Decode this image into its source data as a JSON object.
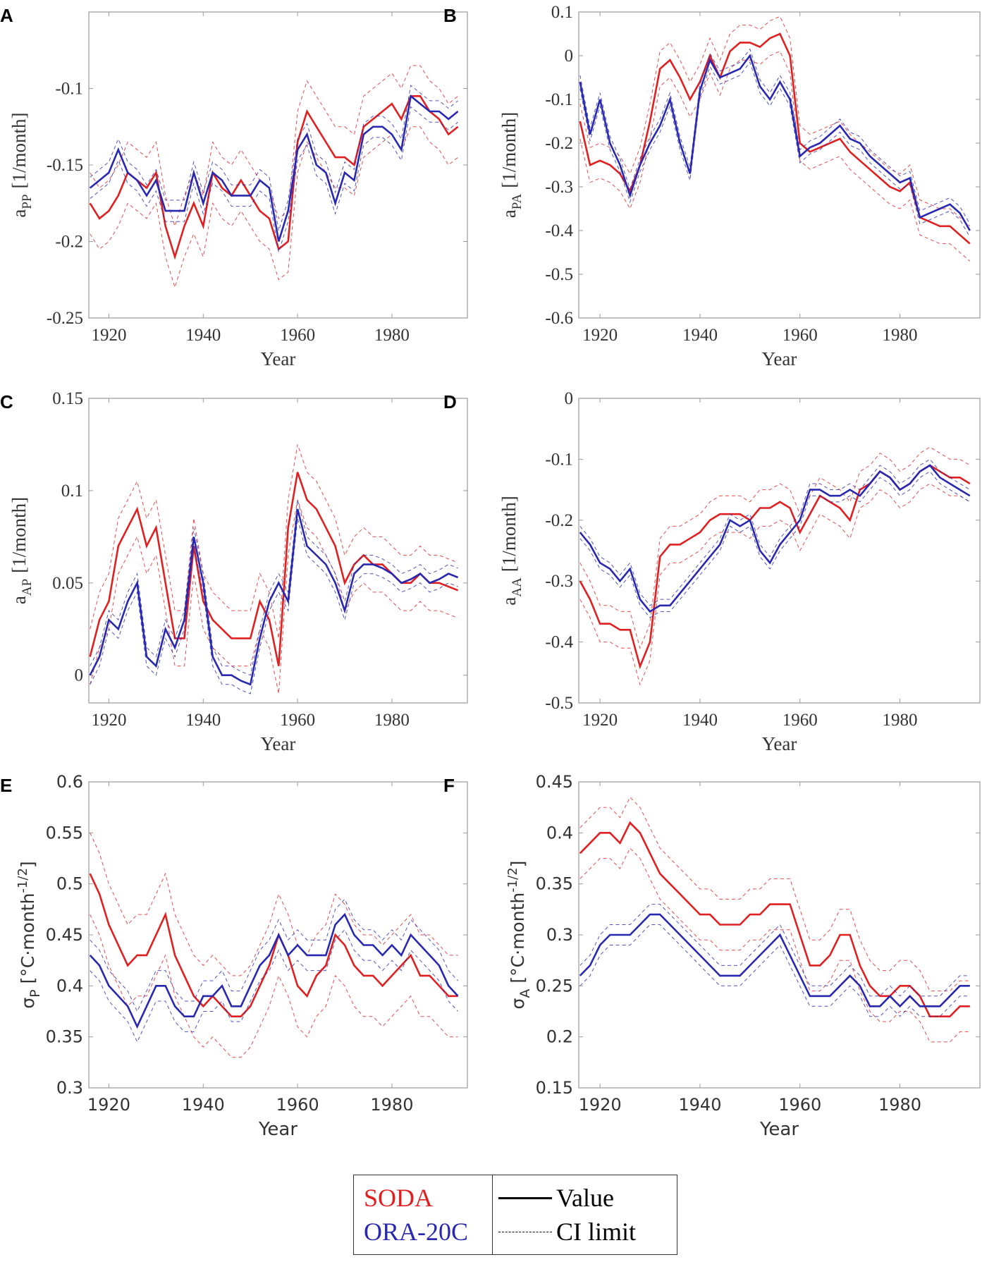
{
  "colors": {
    "soda": "#e02020",
    "ora": "#2828b0"
  },
  "legend": {
    "series": [
      {
        "label": "SODA",
        "color": "#e02020"
      },
      {
        "label": "ORA-20C",
        "color": "#2828b0"
      }
    ],
    "styles": [
      {
        "label": "Value",
        "style": "solid"
      },
      {
        "label": "CI limit",
        "style": "dashed"
      }
    ]
  },
  "years": [
    1916,
    1918,
    1920,
    1922,
    1924,
    1926,
    1928,
    1930,
    1932,
    1934,
    1936,
    1938,
    1940,
    1942,
    1944,
    1946,
    1948,
    1950,
    1952,
    1954,
    1956,
    1958,
    1960,
    1962,
    1964,
    1966,
    1968,
    1970,
    1972,
    1974,
    1976,
    1978,
    1980,
    1982,
    1984,
    1986,
    1988,
    1990,
    1992,
    1994
  ],
  "chart_data": [
    {
      "panel": "A",
      "type": "line",
      "xlabel": "Year",
      "ylabel_main": "a",
      "ylabel_sub": "PP",
      "ylabel_unit": "[1/month]",
      "xlim": [
        1915.75,
        1996
      ],
      "ylim": [
        -0.25,
        -0.05
      ],
      "xticks": [
        "1920",
        "1940",
        "1960",
        "1980"
      ],
      "yticks": [
        "-0.25",
        "-0.2",
        "-0.15",
        "-0.1"
      ],
      "series": [
        {
          "name": "SODA",
          "ci": 0.02,
          "values": [
            -0.175,
            -0.185,
            -0.18,
            -0.17,
            -0.155,
            -0.16,
            -0.165,
            -0.155,
            -0.19,
            -0.21,
            -0.19,
            -0.175,
            -0.19,
            -0.155,
            -0.165,
            -0.17,
            -0.16,
            -0.17,
            -0.18,
            -0.185,
            -0.205,
            -0.2,
            -0.135,
            -0.115,
            -0.125,
            -0.135,
            -0.145,
            -0.145,
            -0.15,
            -0.125,
            -0.12,
            -0.115,
            -0.11,
            -0.12,
            -0.105,
            -0.105,
            -0.115,
            -0.12,
            -0.13,
            -0.125
          ]
        },
        {
          "name": "ORA-20C",
          "ci": 0.007,
          "values": [
            -0.165,
            -0.16,
            -0.155,
            -0.14,
            -0.155,
            -0.16,
            -0.17,
            -0.16,
            -0.18,
            -0.18,
            -0.18,
            -0.155,
            -0.175,
            -0.155,
            -0.16,
            -0.17,
            -0.17,
            -0.17,
            -0.16,
            -0.165,
            -0.2,
            -0.18,
            -0.14,
            -0.13,
            -0.15,
            -0.155,
            -0.175,
            -0.155,
            -0.16,
            -0.13,
            -0.125,
            -0.125,
            -0.13,
            -0.14,
            -0.105,
            -0.11,
            -0.115,
            -0.115,
            -0.12,
            -0.115
          ]
        }
      ]
    },
    {
      "panel": "B",
      "type": "line",
      "xlabel": "Year",
      "ylabel_main": "a",
      "ylabel_sub": "PA",
      "ylabel_unit": "[1/month]",
      "xlim": [
        1915.75,
        1996
      ],
      "ylim": [
        -0.6,
        0.1
      ],
      "xticks": [
        "1920",
        "1940",
        "1960",
        "1980"
      ],
      "yticks": [
        "-0.6",
        "-0.5",
        "-0.4",
        "-0.3",
        "-0.2",
        "-0.1",
        "0",
        "0.1"
      ],
      "series": [
        {
          "name": "SODA",
          "ci": 0.04,
          "values": [
            -0.15,
            -0.25,
            -0.24,
            -0.25,
            -0.27,
            -0.31,
            -0.25,
            -0.15,
            -0.03,
            -0.01,
            -0.05,
            -0.1,
            -0.06,
            0.0,
            -0.05,
            0.01,
            0.03,
            0.03,
            0.02,
            0.04,
            0.05,
            0.0,
            -0.2,
            -0.22,
            -0.21,
            -0.2,
            -0.19,
            -0.22,
            -0.24,
            -0.26,
            -0.28,
            -0.3,
            -0.31,
            -0.29,
            -0.37,
            -0.38,
            -0.39,
            -0.39,
            -0.41,
            -0.43
          ]
        },
        {
          "name": "ORA-20C",
          "ci": 0.015,
          "values": [
            -0.06,
            -0.18,
            -0.1,
            -0.2,
            -0.25,
            -0.32,
            -0.25,
            -0.2,
            -0.16,
            -0.1,
            -0.2,
            -0.27,
            -0.08,
            -0.01,
            -0.05,
            -0.04,
            -0.03,
            0.0,
            -0.07,
            -0.1,
            -0.06,
            -0.1,
            -0.23,
            -0.21,
            -0.2,
            -0.18,
            -0.16,
            -0.19,
            -0.2,
            -0.23,
            -0.25,
            -0.27,
            -0.29,
            -0.28,
            -0.37,
            -0.36,
            -0.35,
            -0.34,
            -0.36,
            -0.4
          ]
        }
      ]
    },
    {
      "panel": "C",
      "type": "line",
      "xlabel": "Year",
      "ylabel_main": "a",
      "ylabel_sub": "AP",
      "ylabel_unit": "[1/month]",
      "xlim": [
        1915.75,
        1996
      ],
      "ylim": [
        -0.015,
        0.15
      ],
      "xticks": [
        "1920",
        "1940",
        "1960",
        "1980"
      ],
      "yticks": [
        "0",
        "0.05",
        "0.1",
        "0.15"
      ],
      "series": [
        {
          "name": "SODA",
          "ci": 0.015,
          "values": [
            0.01,
            0.03,
            0.04,
            0.07,
            0.08,
            0.09,
            0.07,
            0.08,
            0.05,
            0.02,
            0.02,
            0.07,
            0.04,
            0.03,
            0.025,
            0.02,
            0.02,
            0.02,
            0.04,
            0.03,
            0.005,
            0.08,
            0.11,
            0.095,
            0.09,
            0.08,
            0.07,
            0.05,
            0.06,
            0.065,
            0.06,
            0.06,
            0.055,
            0.05,
            0.05,
            0.055,
            0.05,
            0.05,
            0.048,
            0.046
          ]
        },
        {
          "name": "ORA-20C",
          "ci": 0.005,
          "values": [
            0.0,
            0.01,
            0.03,
            0.025,
            0.04,
            0.05,
            0.01,
            0.005,
            0.025,
            0.015,
            0.03,
            0.075,
            0.05,
            0.01,
            0.0,
            0.0,
            -0.003,
            -0.005,
            0.02,
            0.04,
            0.05,
            0.04,
            0.09,
            0.07,
            0.065,
            0.06,
            0.05,
            0.035,
            0.055,
            0.06,
            0.06,
            0.058,
            0.055,
            0.05,
            0.052,
            0.055,
            0.05,
            0.052,
            0.055,
            0.053
          ]
        }
      ]
    },
    {
      "panel": "D",
      "type": "line",
      "xlabel": "Year",
      "ylabel_main": "a",
      "ylabel_sub": "AA",
      "ylabel_unit": "[1/month]",
      "xlim": [
        1915.75,
        1996
      ],
      "ylim": [
        -0.5,
        0
      ],
      "xticks": [
        "1920",
        "1940",
        "1960",
        "1980"
      ],
      "yticks": [
        "-0.5",
        "-0.4",
        "-0.3",
        "-0.2",
        "-0.1",
        "0"
      ],
      "series": [
        {
          "name": "SODA",
          "ci": 0.03,
          "values": [
            -0.3,
            -0.33,
            -0.37,
            -0.37,
            -0.38,
            -0.38,
            -0.44,
            -0.4,
            -0.26,
            -0.24,
            -0.24,
            -0.23,
            -0.22,
            -0.2,
            -0.19,
            -0.19,
            -0.19,
            -0.2,
            -0.18,
            -0.18,
            -0.17,
            -0.18,
            -0.22,
            -0.19,
            -0.16,
            -0.17,
            -0.18,
            -0.2,
            -0.15,
            -0.14,
            -0.12,
            -0.13,
            -0.15,
            -0.14,
            -0.12,
            -0.11,
            -0.12,
            -0.13,
            -0.13,
            -0.14
          ]
        },
        {
          "name": "ORA-20C",
          "ci": 0.01,
          "values": [
            -0.22,
            -0.24,
            -0.27,
            -0.28,
            -0.3,
            -0.28,
            -0.33,
            -0.35,
            -0.34,
            -0.34,
            -0.32,
            -0.3,
            -0.28,
            -0.26,
            -0.24,
            -0.2,
            -0.21,
            -0.2,
            -0.25,
            -0.27,
            -0.24,
            -0.22,
            -0.2,
            -0.15,
            -0.15,
            -0.16,
            -0.16,
            -0.15,
            -0.16,
            -0.14,
            -0.12,
            -0.13,
            -0.15,
            -0.14,
            -0.12,
            -0.11,
            -0.13,
            -0.14,
            -0.15,
            -0.16
          ]
        }
      ]
    },
    {
      "panel": "E",
      "type": "line",
      "xlabel": "Year",
      "ylabel_main": "σ",
      "ylabel_sub": "P",
      "ylabel_unit": "[°C·month",
      "ylabel_sup": "-1/2",
      "ylabel_close": "]",
      "xlim": [
        1915.75,
        1996
      ],
      "ylim": [
        0.3,
        0.6
      ],
      "xticks": [
        "1920",
        "1940",
        "1960",
        "1980"
      ],
      "yticks": [
        "0.3",
        "0.35",
        "0.4",
        "0.45",
        "0.5",
        "0.55",
        "0.6"
      ],
      "series": [
        {
          "name": "SODA",
          "ci": 0.04,
          "values": [
            0.51,
            0.49,
            0.46,
            0.44,
            0.42,
            0.43,
            0.43,
            0.45,
            0.47,
            0.43,
            0.41,
            0.39,
            0.38,
            0.39,
            0.38,
            0.37,
            0.37,
            0.38,
            0.4,
            0.42,
            0.45,
            0.43,
            0.4,
            0.39,
            0.41,
            0.42,
            0.45,
            0.44,
            0.42,
            0.41,
            0.41,
            0.4,
            0.41,
            0.42,
            0.43,
            0.41,
            0.41,
            0.4,
            0.39,
            0.39
          ]
        },
        {
          "name": "ORA-20C",
          "ci": 0.015,
          "values": [
            0.43,
            0.42,
            0.4,
            0.39,
            0.38,
            0.36,
            0.38,
            0.4,
            0.4,
            0.38,
            0.37,
            0.37,
            0.39,
            0.39,
            0.4,
            0.38,
            0.38,
            0.4,
            0.42,
            0.43,
            0.45,
            0.43,
            0.44,
            0.43,
            0.43,
            0.43,
            0.46,
            0.47,
            0.45,
            0.44,
            0.44,
            0.43,
            0.44,
            0.43,
            0.45,
            0.44,
            0.43,
            0.42,
            0.4,
            0.39
          ]
        }
      ]
    },
    {
      "panel": "F",
      "type": "line",
      "xlabel": "Year",
      "ylabel_main": "σ",
      "ylabel_sub": "A",
      "ylabel_unit": "[°C·month",
      "ylabel_sup": "-1/2",
      "ylabel_close": "]",
      "xlim": [
        1915.75,
        1996
      ],
      "ylim": [
        0.15,
        0.45
      ],
      "xticks": [
        "1920",
        "1940",
        "1960",
        "1980"
      ],
      "yticks": [
        "0.15",
        "0.2",
        "0.25",
        "0.3",
        "0.35",
        "0.4",
        "0.45"
      ],
      "series": [
        {
          "name": "SODA",
          "ci": 0.025,
          "values": [
            0.38,
            0.39,
            0.4,
            0.4,
            0.39,
            0.41,
            0.4,
            0.38,
            0.36,
            0.35,
            0.34,
            0.33,
            0.32,
            0.32,
            0.31,
            0.31,
            0.31,
            0.32,
            0.32,
            0.33,
            0.33,
            0.33,
            0.3,
            0.27,
            0.27,
            0.28,
            0.3,
            0.3,
            0.27,
            0.25,
            0.24,
            0.24,
            0.25,
            0.25,
            0.24,
            0.22,
            0.22,
            0.22,
            0.23,
            0.23
          ]
        },
        {
          "name": "ORA-20C",
          "ci": 0.01,
          "values": [
            0.26,
            0.27,
            0.29,
            0.3,
            0.3,
            0.3,
            0.31,
            0.32,
            0.32,
            0.31,
            0.3,
            0.29,
            0.28,
            0.27,
            0.26,
            0.26,
            0.26,
            0.27,
            0.28,
            0.29,
            0.3,
            0.28,
            0.26,
            0.24,
            0.24,
            0.24,
            0.25,
            0.26,
            0.25,
            0.23,
            0.23,
            0.24,
            0.23,
            0.24,
            0.23,
            0.23,
            0.23,
            0.24,
            0.25,
            0.25
          ]
        }
      ]
    }
  ]
}
